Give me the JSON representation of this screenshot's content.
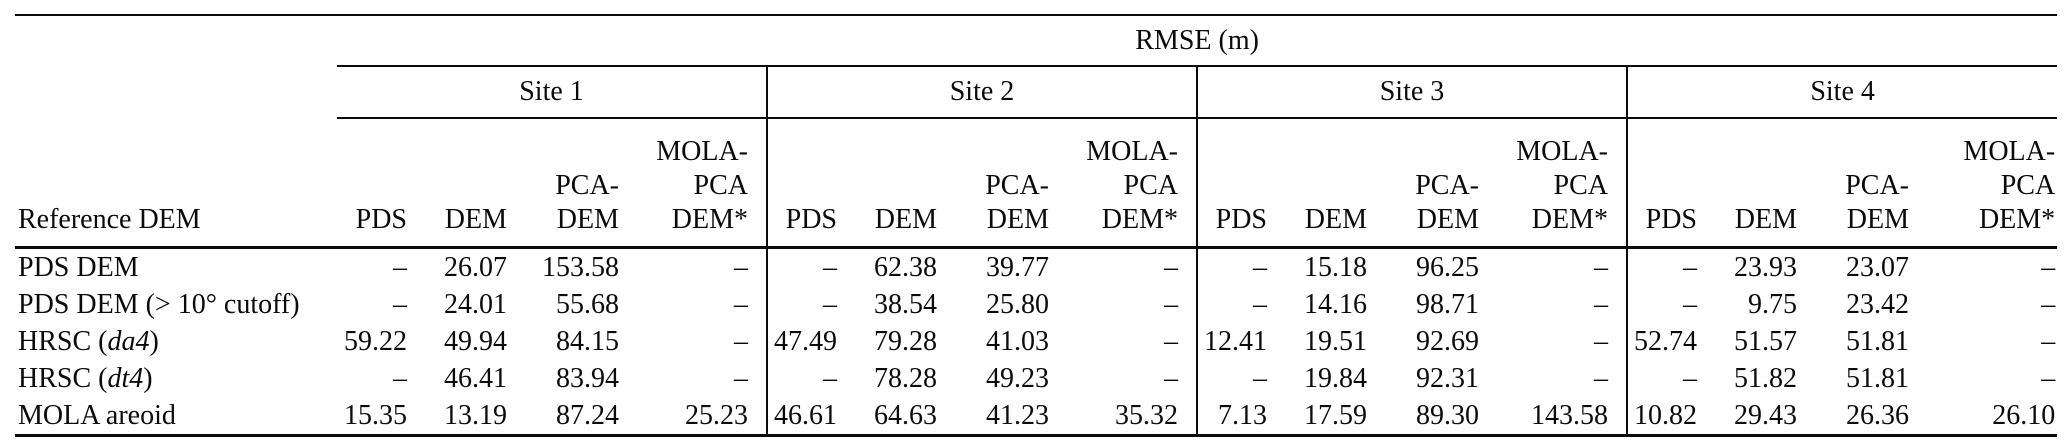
{
  "colors": {
    "background": "#ffffff",
    "text": "#0b0b0b",
    "rules": "#0b0b0b"
  },
  "table": {
    "title": "RMSE (m)",
    "ref_header": "Reference DEM",
    "sites": [
      "Site 1",
      "Site 2",
      "Site 3",
      "Site 4"
    ],
    "columns": [
      {
        "key": "pds",
        "lines": [
          "PDS"
        ]
      },
      {
        "key": "dem",
        "lines": [
          "DEM"
        ]
      },
      {
        "key": "pca-dem",
        "lines": [
          "PCA-",
          "DEM"
        ]
      },
      {
        "key": "mola-pca-dem",
        "lines": [
          "MOLA-",
          "PCA",
          "DEM*"
        ]
      }
    ],
    "rows": [
      {
        "label": {
          "pre": "PDS DEM",
          "italic": "",
          "post": ""
        },
        "values": [
          "–",
          "26.07",
          "153.58",
          "–",
          "–",
          "62.38",
          "39.77",
          "–",
          "–",
          "15.18",
          "96.25",
          "–",
          "–",
          "23.93",
          "23.07",
          "–"
        ]
      },
      {
        "label": {
          "pre": "PDS DEM (> 10° cutoff)",
          "italic": "",
          "post": ""
        },
        "values": [
          "–",
          "24.01",
          "55.68",
          "–",
          "–",
          "38.54",
          "25.80",
          "–",
          "–",
          "14.16",
          "98.71",
          "–",
          "–",
          "9.75",
          "23.42",
          "–"
        ]
      },
      {
        "label": {
          "pre": "HRSC (",
          "italic": "da4",
          "post": ")"
        },
        "values": [
          "59.22",
          "49.94",
          "84.15",
          "–",
          "47.49",
          "79.28",
          "41.03",
          "–",
          "12.41",
          "19.51",
          "92.69",
          "–",
          "52.74",
          "51.57",
          "51.81",
          "–"
        ]
      },
      {
        "label": {
          "pre": "HRSC (",
          "italic": "dt4",
          "post": ")"
        },
        "values": [
          "–",
          "46.41",
          "83.94",
          "–",
          "–",
          "78.28",
          "49.23",
          "–",
          "–",
          "19.84",
          "92.31",
          "–",
          "–",
          "51.82",
          "51.81",
          "–"
        ]
      },
      {
        "label": {
          "pre": "MOLA areoid",
          "italic": "",
          "post": ""
        },
        "values": [
          "15.35",
          "13.19",
          "87.24",
          "25.23",
          "46.61",
          "64.63",
          "41.23",
          "35.32",
          "7.13",
          "17.59",
          "89.30",
          "143.58",
          "10.82",
          "29.43",
          "26.36",
          "26.10"
        ]
      }
    ]
  }
}
